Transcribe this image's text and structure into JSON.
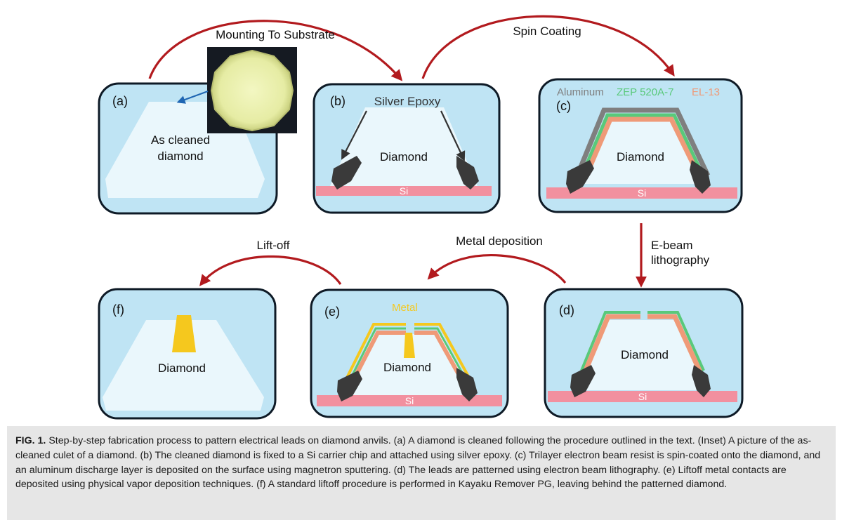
{
  "panels": {
    "a": {
      "label": "(a)",
      "text_line1": "As cleaned",
      "text_line2": "diamond"
    },
    "b": {
      "label": "(b)",
      "epoxy_label": "Silver Epoxy",
      "diamond": "Diamond",
      "si": "Si"
    },
    "c": {
      "label": "(c)",
      "diamond": "Diamond",
      "si": "Si",
      "layer_labels": [
        {
          "text": "Aluminum",
          "color": "#7f7f7f"
        },
        {
          "text": "ZEP 520A-7",
          "color": "#59c97a"
        },
        {
          "text": "EL-13",
          "color": "#ef9a78"
        }
      ]
    },
    "d": {
      "label": "(d)",
      "diamond": "Diamond",
      "si": "Si"
    },
    "e": {
      "label": "(e)",
      "metal_label": "Metal",
      "diamond": "Diamond",
      "si": "Si"
    },
    "f": {
      "label": "(f)",
      "diamond": "Diamond"
    }
  },
  "steps": {
    "mounting": "Mounting To Substrate",
    "spin": "Spin Coating",
    "ebeam_line1": "E-beam",
    "ebeam_line2": "lithography",
    "metal_dep": "Metal deposition",
    "liftoff": "Lift-off"
  },
  "caption": {
    "prefix": "FIG. 1.",
    "text": "Step-by-step fabrication process to pattern electrical leads on diamond anvils. (a) A diamond is cleaned following the procedure outlined in the text. (Inset) A picture of the as-cleaned culet of a diamond. (b) The cleaned diamond is fixed to a Si carrier chip and attached using silver epoxy. (c) Trilayer electron beam resist is spin-coated onto the diamond, and an aluminum discharge layer is deposited on the surface using magnetron sputtering. (d) The leads are patterned using electron beam lithography. (e) Liftoff metal contacts are deposited using physical vapor deposition techniques. (f) A standard liftoff procedure is performed in Kayaku Remover PG, leaving behind the patterned diamond."
  },
  "colors": {
    "panel_bg": "#bfe4f4",
    "panel_border": "#0e1a26",
    "diamond": "#eaf7fc",
    "si": "#f2909f",
    "arrow": "#b21a1e",
    "epoxy": "#3a3a3a",
    "aluminum": "#7f7f7f",
    "zep": "#59c97a",
    "el13": "#ef9a78",
    "metal": "#f5c81e"
  }
}
